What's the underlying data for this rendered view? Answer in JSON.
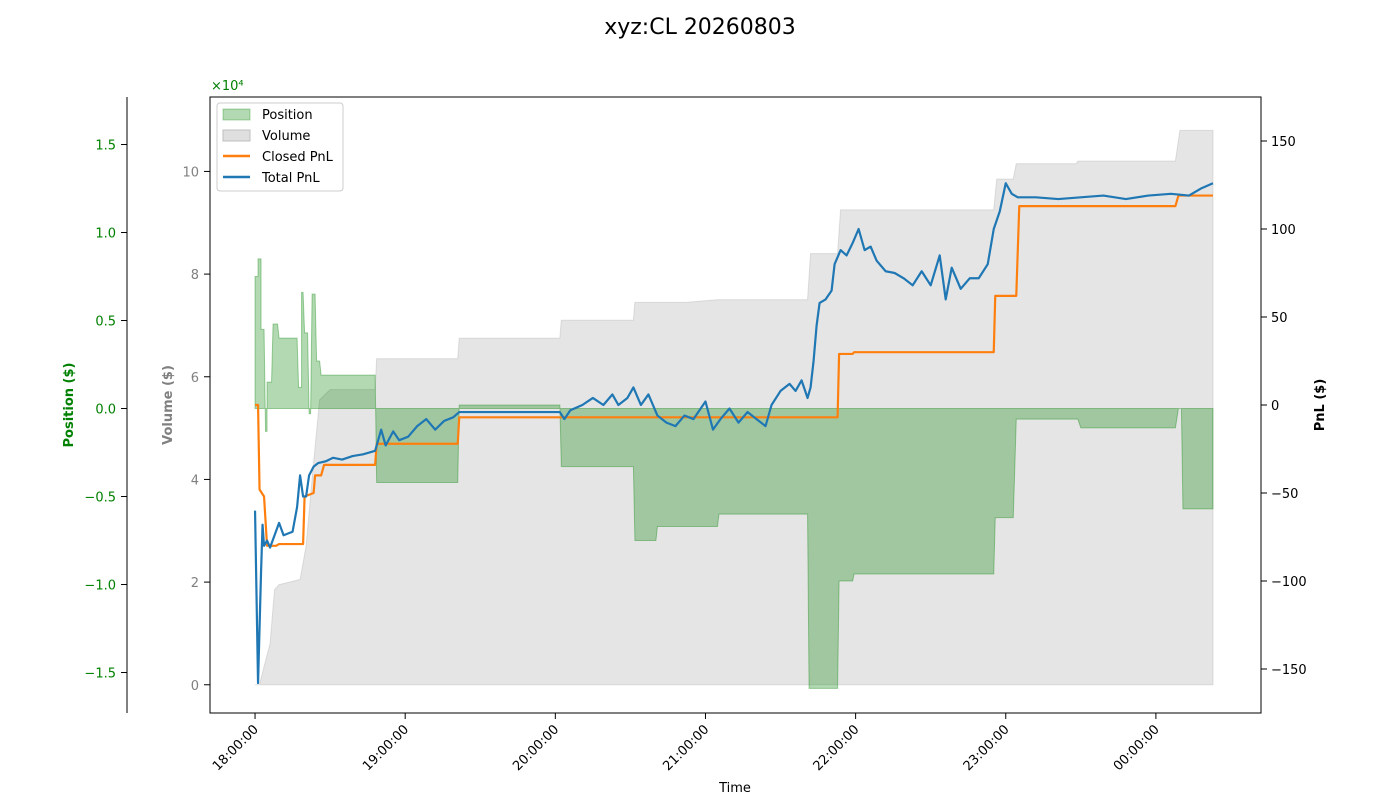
{
  "chart_data": {
    "type": "line",
    "title": "xyz:CL 20260803",
    "xlabel": "Time",
    "x_ticks": [
      "18:00:00",
      "19:00:00",
      "20:00:00",
      "21:00:00",
      "22:00:00",
      "23:00:00",
      "00:00:00"
    ],
    "x_range_hours": [
      17.7,
      24.7
    ],
    "axes": {
      "position": {
        "label": "Position ($)",
        "color": "#008000",
        "ylim": [
          -17300,
          17700
        ],
        "ticks": [
          "1.5",
          "1.0",
          "0.5",
          "0.0",
          "−0.5",
          "−1.0",
          "−1.5"
        ],
        "tick_values": [
          15000,
          10000,
          5000,
          0,
          -5000,
          -10000,
          -15000
        ],
        "multiplier": "×10⁴"
      },
      "volume": {
        "label": "Volume ($)",
        "color": "#808080",
        "ylim": [
          -5500,
          114500
        ],
        "ticks": [
          "10",
          "8",
          "6",
          "4",
          "2",
          "0"
        ],
        "tick_values": [
          100000,
          80000,
          60000,
          40000,
          20000,
          0
        ],
        "multiplier": "×10⁴"
      },
      "pnl": {
        "label": "PnL ($)",
        "color": "#000000",
        "ylim": [
          -175,
          175
        ],
        "ticks": [
          "150",
          "100",
          "50",
          "0",
          "−50",
          "−100",
          "−150"
        ],
        "tick_values": [
          150,
          100,
          50,
          0,
          -50,
          -100,
          -150
        ]
      }
    },
    "legend": {
      "placement": "top-left",
      "entries": [
        "Position",
        "Volume",
        "Closed PnL",
        "Total PnL"
      ]
    },
    "colors": {
      "position": "#008000",
      "volume": "#bfbfbf",
      "closed_pnl": "#ff7f0e",
      "total_pnl": "#1f77b4"
    },
    "series": [
      {
        "name": "Position",
        "kind": "area",
        "axis": "position",
        "points": [
          [
            18.0,
            7500
          ],
          [
            18.02,
            7500
          ],
          [
            18.02,
            8500
          ],
          [
            18.04,
            8500
          ],
          [
            18.04,
            4500
          ],
          [
            18.06,
            4500
          ],
          [
            18.07,
            -1300
          ],
          [
            18.08,
            -1300
          ],
          [
            18.08,
            1500
          ],
          [
            18.11,
            1500
          ],
          [
            18.12,
            4800
          ],
          [
            18.15,
            4800
          ],
          [
            18.16,
            4000
          ],
          [
            18.28,
            4000
          ],
          [
            18.29,
            1200
          ],
          [
            18.31,
            1200
          ],
          [
            18.31,
            6600
          ],
          [
            18.32,
            6600
          ],
          [
            18.33,
            4300
          ],
          [
            18.35,
            4300
          ],
          [
            18.36,
            -300
          ],
          [
            18.37,
            -300
          ],
          [
            18.38,
            6500
          ],
          [
            18.4,
            6500
          ],
          [
            18.41,
            2700
          ],
          [
            18.43,
            2700
          ],
          [
            18.44,
            1900
          ],
          [
            18.8,
            1900
          ],
          [
            18.81,
            -4200
          ],
          [
            19.35,
            -4200
          ],
          [
            19.36,
            200
          ],
          [
            20.03,
            200
          ],
          [
            20.04,
            -3300
          ],
          [
            20.52,
            -3300
          ],
          [
            20.53,
            -7500
          ],
          [
            20.67,
            -7500
          ],
          [
            20.68,
            -6700
          ],
          [
            21.08,
            -6700
          ],
          [
            21.09,
            -6000
          ],
          [
            21.68,
            -6000
          ],
          [
            21.69,
            -15900
          ],
          [
            21.88,
            -15900
          ],
          [
            21.89,
            -9800
          ],
          [
            21.98,
            -9800
          ],
          [
            21.99,
            -9400
          ],
          [
            22.92,
            -9400
          ],
          [
            22.93,
            -6200
          ],
          [
            23.05,
            -6200
          ],
          [
            23.07,
            -600
          ],
          [
            23.48,
            -600
          ],
          [
            23.5,
            -1100
          ],
          [
            24.13,
            -1100
          ],
          [
            24.15,
            0
          ],
          [
            24.17,
            0
          ],
          [
            24.18,
            -5700
          ],
          [
            24.38,
            -5700
          ]
        ]
      },
      {
        "name": "Volume",
        "kind": "area",
        "axis": "volume",
        "points": [
          [
            18.0,
            0
          ],
          [
            18.03,
            0
          ],
          [
            18.06,
            3500
          ],
          [
            18.1,
            8000
          ],
          [
            18.13,
            18500
          ],
          [
            18.16,
            19500
          ],
          [
            18.3,
            20500
          ],
          [
            18.34,
            27000
          ],
          [
            18.38,
            40000
          ],
          [
            18.43,
            55500
          ],
          [
            18.5,
            57500
          ],
          [
            18.8,
            57500
          ],
          [
            18.81,
            63500
          ],
          [
            19.35,
            63500
          ],
          [
            19.36,
            67500
          ],
          [
            20.03,
            67500
          ],
          [
            20.04,
            71000
          ],
          [
            20.52,
            71000
          ],
          [
            20.53,
            74500
          ],
          [
            20.87,
            74500
          ],
          [
            21.08,
            75000
          ],
          [
            21.68,
            75000
          ],
          [
            21.7,
            84000
          ],
          [
            21.88,
            84000
          ],
          [
            21.9,
            92500
          ],
          [
            22.92,
            92500
          ],
          [
            22.94,
            98500
          ],
          [
            23.05,
            98500
          ],
          [
            23.07,
            101500
          ],
          [
            23.47,
            101500
          ],
          [
            23.48,
            102000
          ],
          [
            24.13,
            102000
          ],
          [
            24.16,
            108000
          ],
          [
            24.38,
            108000
          ]
        ]
      },
      {
        "name": "Closed PnL",
        "kind": "line",
        "axis": "pnl",
        "points": [
          [
            18.0,
            0
          ],
          [
            18.02,
            0
          ],
          [
            18.03,
            -48
          ],
          [
            18.06,
            -52
          ],
          [
            18.08,
            -80
          ],
          [
            18.14,
            -80
          ],
          [
            18.16,
            -79
          ],
          [
            18.32,
            -79
          ],
          [
            18.33,
            -52
          ],
          [
            18.39,
            -50
          ],
          [
            18.4,
            -40
          ],
          [
            18.44,
            -40
          ],
          [
            18.46,
            -34
          ],
          [
            18.8,
            -34
          ],
          [
            18.81,
            -22
          ],
          [
            19.35,
            -22
          ],
          [
            19.36,
            -7
          ],
          [
            20.03,
            -7
          ],
          [
            20.04,
            -7
          ],
          [
            21.88,
            -7
          ],
          [
            21.89,
            29
          ],
          [
            21.98,
            29
          ],
          [
            21.99,
            30
          ],
          [
            22.92,
            30
          ],
          [
            22.93,
            62
          ],
          [
            23.07,
            62
          ],
          [
            23.09,
            113
          ],
          [
            24.13,
            113
          ],
          [
            24.15,
            119
          ],
          [
            24.38,
            119
          ]
        ]
      },
      {
        "name": "Total PnL",
        "kind": "line",
        "axis": "pnl",
        "points": [
          [
            18.0,
            -60
          ],
          [
            18.02,
            -158
          ],
          [
            18.04,
            -95
          ],
          [
            18.05,
            -68
          ],
          [
            18.06,
            -80
          ],
          [
            18.08,
            -77
          ],
          [
            18.1,
            -81
          ],
          [
            18.13,
            -74
          ],
          [
            18.16,
            -67
          ],
          [
            18.19,
            -74
          ],
          [
            18.22,
            -73
          ],
          [
            18.25,
            -72
          ],
          [
            18.28,
            -58
          ],
          [
            18.3,
            -40
          ],
          [
            18.32,
            -52
          ],
          [
            18.34,
            -52
          ],
          [
            18.36,
            -40
          ],
          [
            18.39,
            -35
          ],
          [
            18.42,
            -33
          ],
          [
            18.47,
            -32
          ],
          [
            18.52,
            -30
          ],
          [
            18.58,
            -31
          ],
          [
            18.65,
            -29
          ],
          [
            18.72,
            -28
          ],
          [
            18.8,
            -26
          ],
          [
            18.84,
            -14
          ],
          [
            18.87,
            -23
          ],
          [
            18.92,
            -15
          ],
          [
            18.96,
            -20
          ],
          [
            19.02,
            -18
          ],
          [
            19.08,
            -12
          ],
          [
            19.14,
            -8
          ],
          [
            19.2,
            -14
          ],
          [
            19.26,
            -9
          ],
          [
            19.32,
            -7
          ],
          [
            19.36,
            -4
          ],
          [
            19.5,
            -4
          ],
          [
            19.7,
            -4
          ],
          [
            19.9,
            -4
          ],
          [
            20.03,
            -4
          ],
          [
            20.06,
            -8
          ],
          [
            20.1,
            -3
          ],
          [
            20.18,
            0
          ],
          [
            20.25,
            4
          ],
          [
            20.32,
            0
          ],
          [
            20.38,
            6
          ],
          [
            20.42,
            0
          ],
          [
            20.48,
            4
          ],
          [
            20.52,
            10
          ],
          [
            20.57,
            0
          ],
          [
            20.62,
            6
          ],
          [
            20.68,
            -6
          ],
          [
            20.74,
            -10
          ],
          [
            20.8,
            -12
          ],
          [
            20.86,
            -6
          ],
          [
            20.92,
            -8
          ],
          [
            21.0,
            2
          ],
          [
            21.05,
            -14
          ],
          [
            21.1,
            -8
          ],
          [
            21.16,
            -2
          ],
          [
            21.22,
            -10
          ],
          [
            21.28,
            -4
          ],
          [
            21.34,
            -8
          ],
          [
            21.4,
            -12
          ],
          [
            21.44,
            0
          ],
          [
            21.5,
            8
          ],
          [
            21.56,
            12
          ],
          [
            21.6,
            8
          ],
          [
            21.64,
            14
          ],
          [
            21.68,
            4
          ],
          [
            21.7,
            10
          ],
          [
            21.72,
            25
          ],
          [
            21.74,
            45
          ],
          [
            21.76,
            58
          ],
          [
            21.8,
            60
          ],
          [
            21.84,
            65
          ],
          [
            21.86,
            80
          ],
          [
            21.9,
            88
          ],
          [
            21.94,
            85
          ],
          [
            21.98,
            92
          ],
          [
            22.02,
            100
          ],
          [
            22.06,
            88
          ],
          [
            22.1,
            90
          ],
          [
            22.14,
            82
          ],
          [
            22.2,
            76
          ],
          [
            22.26,
            75
          ],
          [
            22.32,
            72
          ],
          [
            22.38,
            68
          ],
          [
            22.44,
            76
          ],
          [
            22.5,
            68
          ],
          [
            22.56,
            85
          ],
          [
            22.6,
            60
          ],
          [
            22.64,
            78
          ],
          [
            22.7,
            66
          ],
          [
            22.76,
            72
          ],
          [
            22.82,
            72
          ],
          [
            22.88,
            80
          ],
          [
            22.92,
            100
          ],
          [
            22.96,
            110
          ],
          [
            23.0,
            126
          ],
          [
            23.04,
            120
          ],
          [
            23.08,
            118
          ],
          [
            23.2,
            118
          ],
          [
            23.35,
            117
          ],
          [
            23.5,
            118
          ],
          [
            23.65,
            119
          ],
          [
            23.8,
            117
          ],
          [
            23.95,
            119
          ],
          [
            24.1,
            120
          ],
          [
            24.22,
            119
          ],
          [
            24.3,
            123
          ],
          [
            24.38,
            126
          ]
        ]
      }
    ]
  }
}
